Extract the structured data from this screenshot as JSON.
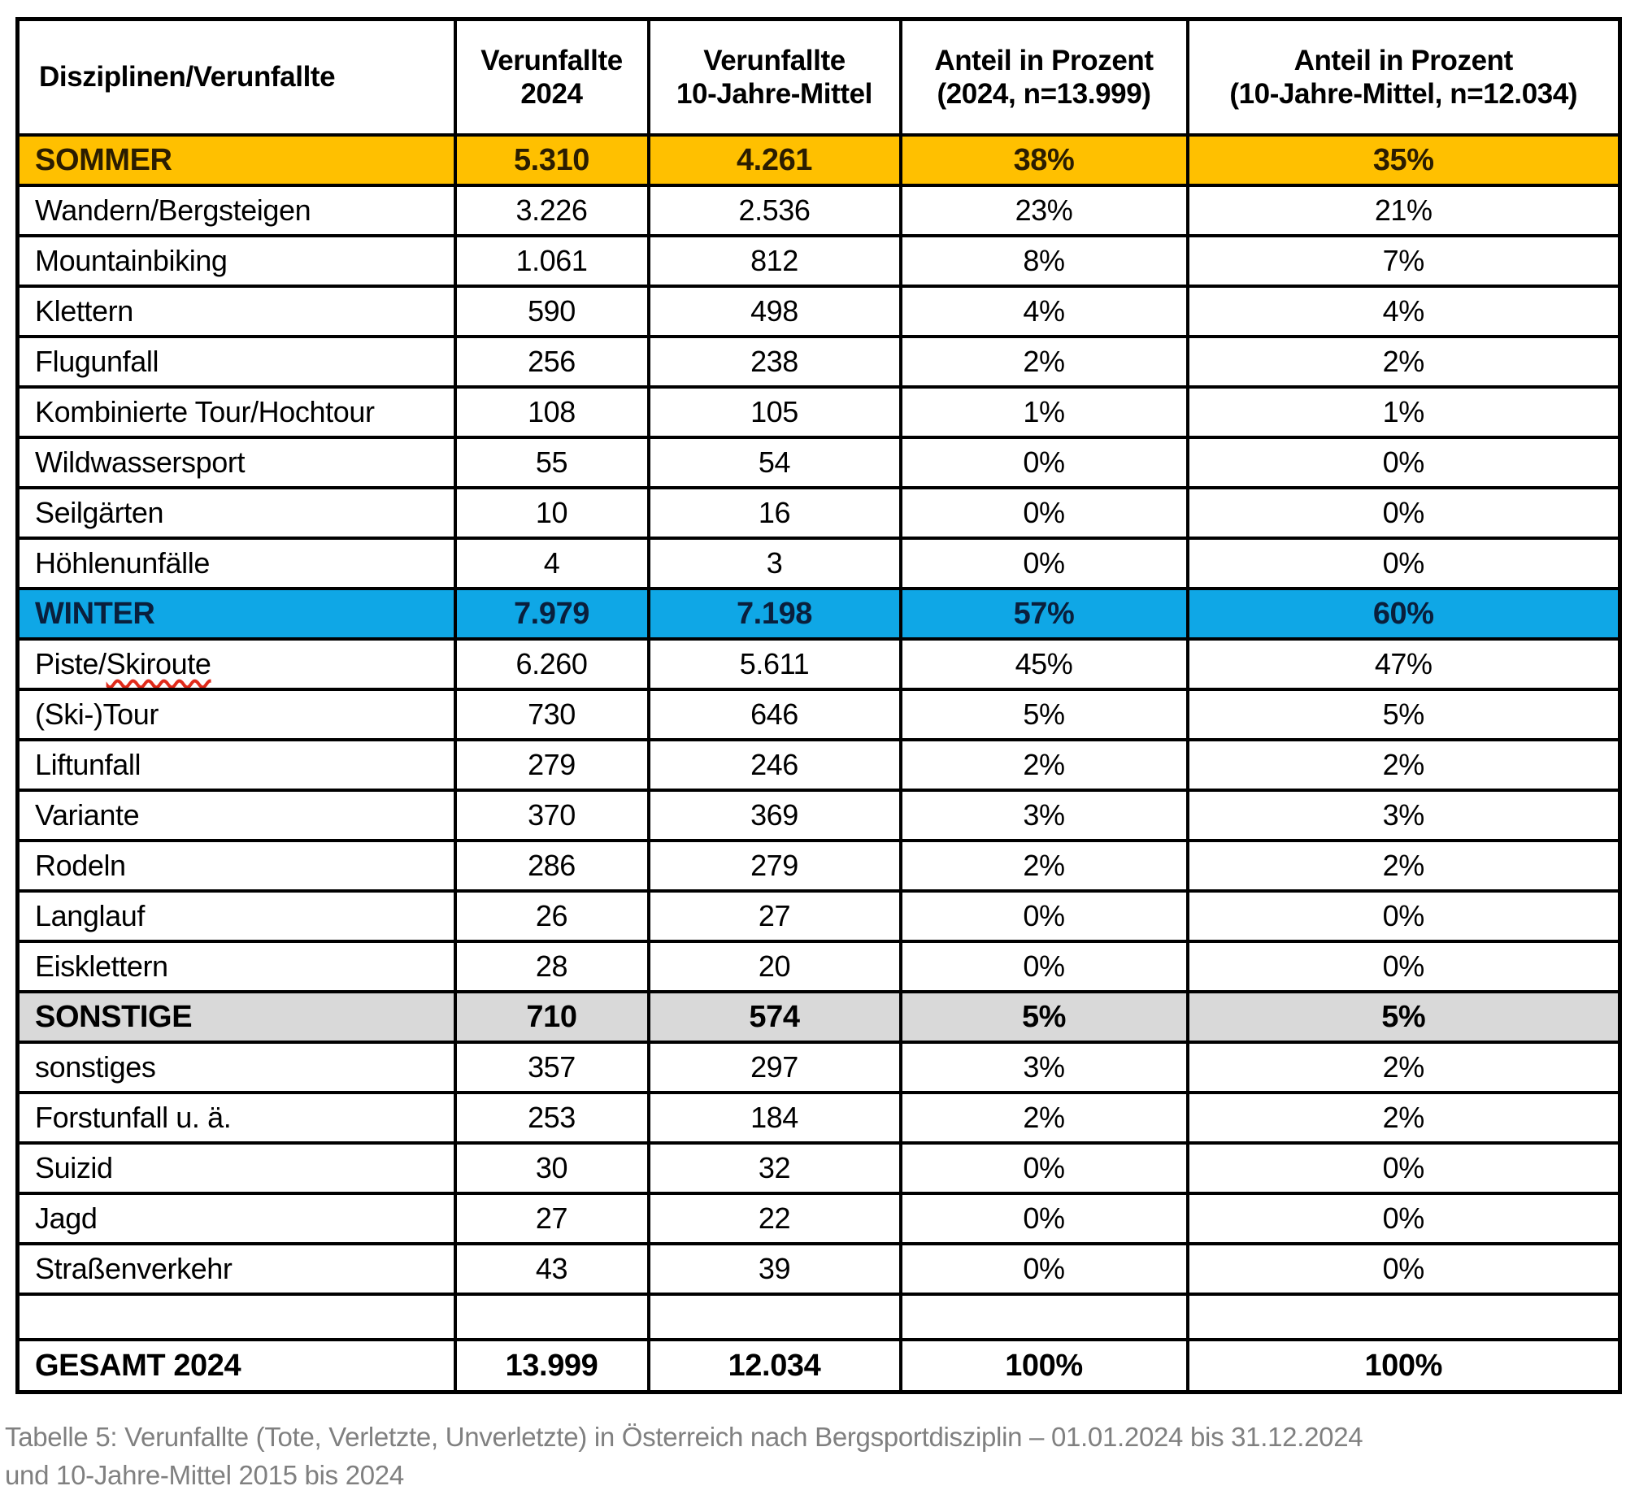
{
  "colors": {
    "sommer_row_bg": "#FFC000",
    "winter_row_bg": "#0FA7E6",
    "sonstige_row_bg": "#D9D9D9",
    "caption_text": "#808080",
    "spellcheck_underline": "#E02A1A",
    "border": "#000000"
  },
  "table": {
    "header": {
      "col0": "Disziplinen/Verunfallte",
      "col1": "Verunfallte\n2024",
      "col2": "Verunfallte\n10-Jahre-Mittel",
      "col3": "Anteil in Prozent\n(2024, n=13.999)",
      "col4": "Anteil in Prozent\n(10-Jahre-Mittel, n=12.034)"
    },
    "rows": [
      {
        "style": "sommer",
        "label": "SOMMER",
        "v2024": "5.310",
        "v10": "4.261",
        "p2024": "38%",
        "p10": "35%"
      },
      {
        "style": "data",
        "label": "Wandern/Bergsteigen",
        "v2024": "3.226",
        "v10": "2.536",
        "p2024": "23%",
        "p10": "21%"
      },
      {
        "style": "data",
        "label": "Mountainbiking",
        "v2024": "1.061",
        "v10": "812",
        "p2024": "8%",
        "p10": "7%"
      },
      {
        "style": "data",
        "label": "Klettern",
        "v2024": "590",
        "v10": "498",
        "p2024": "4%",
        "p10": "4%"
      },
      {
        "style": "data",
        "label": "Flugunfall",
        "v2024": "256",
        "v10": "238",
        "p2024": "2%",
        "p10": "2%"
      },
      {
        "style": "data",
        "label": "Kombinierte Tour/Hochtour",
        "v2024": "108",
        "v10": "105",
        "p2024": "1%",
        "p10": "1%"
      },
      {
        "style": "data",
        "label": "Wildwassersport",
        "v2024": "55",
        "v10": "54",
        "p2024": "0%",
        "p10": "0%"
      },
      {
        "style": "data",
        "label": "Seilgärten",
        "v2024": "10",
        "v10": "16",
        "p2024": "0%",
        "p10": "0%"
      },
      {
        "style": "data",
        "label": "Höhlenunfälle",
        "v2024": "4",
        "v10": "3",
        "p2024": "0%",
        "p10": "0%"
      },
      {
        "style": "winter",
        "label": "WINTER",
        "v2024": "7.979",
        "v10": "7.198",
        "p2024": "57%",
        "p10": "60%"
      },
      {
        "style": "data",
        "label": "Piste/Skiroute",
        "spell_prefix": "Piste/",
        "spell_word": "Skiroute",
        "v2024": "6.260",
        "v10": "5.611",
        "p2024": "45%",
        "p10": "47%"
      },
      {
        "style": "data",
        "label": "(Ski-)Tour",
        "v2024": "730",
        "v10": "646",
        "p2024": "5%",
        "p10": "5%"
      },
      {
        "style": "data",
        "label": "Liftunfall",
        "v2024": "279",
        "v10": "246",
        "p2024": "2%",
        "p10": "2%"
      },
      {
        "style": "data",
        "label": "Variante",
        "v2024": "370",
        "v10": "369",
        "p2024": "3%",
        "p10": "3%"
      },
      {
        "style": "data",
        "label": "Rodeln",
        "v2024": "286",
        "v10": "279",
        "p2024": "2%",
        "p10": "2%"
      },
      {
        "style": "data",
        "label": "Langlauf",
        "v2024": "26",
        "v10": "27",
        "p2024": "0%",
        "p10": "0%"
      },
      {
        "style": "data",
        "label": "Eisklettern",
        "v2024": "28",
        "v10": "20",
        "p2024": "0%",
        "p10": "0%"
      },
      {
        "style": "sonstige",
        "label": "SONSTIGE",
        "v2024": "710",
        "v10": "574",
        "p2024": "5%",
        "p10": "5%"
      },
      {
        "style": "data",
        "label": "sonstiges",
        "v2024": "357",
        "v10": "297",
        "p2024": "3%",
        "p10": "2%"
      },
      {
        "style": "data",
        "label": "Forstunfall u. ä.",
        "v2024": "253",
        "v10": "184",
        "p2024": "2%",
        "p10": "2%"
      },
      {
        "style": "data",
        "label": "Suizid",
        "v2024": "30",
        "v10": "32",
        "p2024": "0%",
        "p10": "0%"
      },
      {
        "style": "data",
        "label": "Jagd",
        "v2024": "27",
        "v10": "22",
        "p2024": "0%",
        "p10": "0%"
      },
      {
        "style": "data",
        "label": "Straßenverkehr",
        "v2024": "43",
        "v10": "39",
        "p2024": "0%",
        "p10": "0%"
      },
      {
        "style": "empty",
        "label": "",
        "v2024": "",
        "v10": "",
        "p2024": "",
        "p10": ""
      },
      {
        "style": "gesamt",
        "label": "GESAMT 2024",
        "v2024": "13.999",
        "v10": "12.034",
        "p2024": "100%",
        "p10": "100%"
      }
    ]
  },
  "caption": {
    "text": "Tabelle 5: Verunfallte (Tote, Verletzte, Unverletzte) in Österreich nach Bergsportdisziplin – 01.01.2024 bis 31.12.2024\nund 10-Jahre-Mittel 2015 bis 2024"
  }
}
